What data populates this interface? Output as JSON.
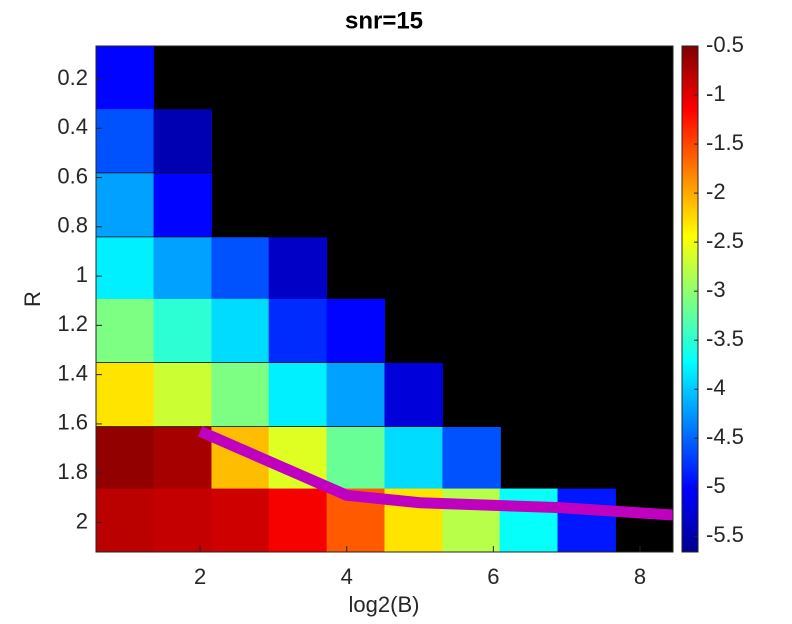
{
  "chart_data": {
    "type": "heatmap",
    "title": "snr=15",
    "xlabel": "log2(B)",
    "ylabel": "R",
    "x": [
      0.97,
      1.76,
      2.55,
      3.33,
      4.12,
      4.91,
      5.7,
      6.48,
      7.27,
      8.06
    ],
    "y": [
      0.195,
      0.45,
      0.71,
      0.97,
      1.22,
      1.48,
      1.74,
      1.99
    ],
    "values": [
      [
        -5.0,
        null,
        null,
        null,
        null,
        null,
        null,
        null,
        null,
        null
      ],
      [
        -4.6,
        -5.4,
        null,
        null,
        null,
        null,
        null,
        null,
        null,
        null
      ],
      [
        -4.2,
        -5.0,
        null,
        null,
        null,
        null,
        null,
        null,
        null,
        null
      ],
      [
        -3.8,
        -4.2,
        -4.6,
        -5.3,
        null,
        null,
        null,
        null,
        null,
        null
      ],
      [
        -3.1,
        -3.5,
        -3.9,
        -4.8,
        -5.0,
        null,
        null,
        null,
        null,
        null
      ],
      [
        -2.3,
        -2.7,
        -3.1,
        -3.8,
        -4.2,
        -5.2,
        null,
        null,
        null,
        null
      ],
      [
        -0.6,
        -0.7,
        -2.1,
        -2.6,
        -3.2,
        -3.9,
        -4.6,
        null,
        null,
        null
      ],
      [
        -0.8,
        -0.85,
        -0.9,
        -1.1,
        -1.6,
        -2.3,
        -2.8,
        -3.7,
        -4.9,
        null
      ]
    ],
    "xlim": [
      0.58,
      8.45
    ],
    "xticks": [
      2,
      4,
      6,
      8
    ],
    "ylim": [
      0.066,
      2.12
    ],
    "y_direction": "reverse",
    "yticks": [
      0.2,
      0.4,
      0.6,
      0.8,
      1,
      1.2,
      1.4,
      1.6,
      1.8,
      2
    ],
    "colormap": "jet",
    "clim": [
      -5.66,
      -0.5
    ],
    "cticks": [
      -0.5,
      -1,
      -1.5,
      -2,
      -2.5,
      -3,
      -3.5,
      -4,
      -4.5,
      -5,
      -5.5
    ],
    "line": {
      "color": "#c000c0",
      "x": [
        2,
        4,
        5.0,
        6.91,
        8.45
      ],
      "y": [
        1.63,
        1.89,
        1.92,
        1.94,
        1.97
      ]
    }
  }
}
